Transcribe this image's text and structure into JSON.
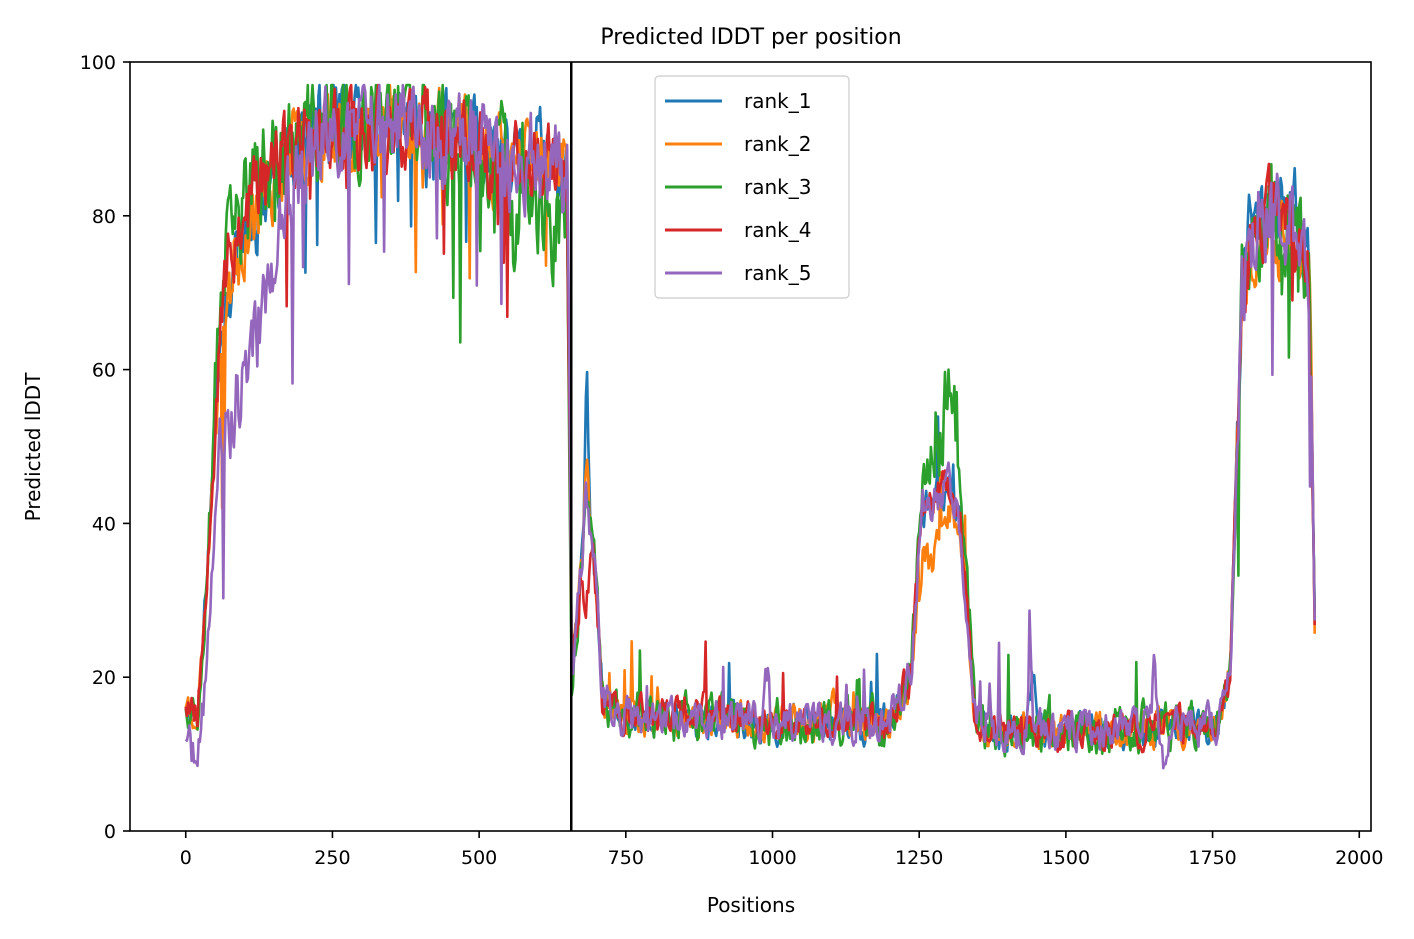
{
  "chart_data": {
    "type": "line",
    "title": "Predicted lDDT per position",
    "xlabel": "Positions",
    "ylabel": "Predicted lDDT",
    "xlim": [
      -95,
      2020
    ],
    "ylim": [
      0,
      100
    ],
    "xticks": [
      0,
      250,
      500,
      750,
      1000,
      1250,
      1500,
      1750,
      2000
    ],
    "yticks": [
      0,
      20,
      40,
      60,
      80,
      100
    ],
    "grid": false,
    "legend_position": "upper-center",
    "vline_x": 657,
    "series": [
      {
        "name": "rank_1",
        "color": "#1f77b4",
        "seed": 11,
        "amp": 1.0,
        "bumps": [
          [
            683,
            12,
            3
          ],
          [
            1445,
            8,
            5
          ],
          [
            1815,
            4,
            5
          ],
          [
            1890,
            3,
            4
          ]
        ]
      },
      {
        "name": "rank_2",
        "color": "#ff7f0e",
        "seed": 23,
        "amp": 1.0,
        "bumps": [
          [
            683,
            9,
            3
          ],
          [
            1270,
            -8,
            20
          ],
          [
            1860,
            -6,
            4
          ],
          [
            1100,
            2,
            10
          ]
        ]
      },
      {
        "name": "rank_3",
        "color": "#2ca02c",
        "seed": 37,
        "amp": 1.3,
        "bumps": [
          [
            620,
            -10,
            20
          ],
          [
            560,
            -8,
            6
          ],
          [
            1295,
            10,
            25
          ],
          [
            1170,
            6,
            3
          ],
          [
            100,
            4,
            40
          ]
        ]
      },
      {
        "name": "rank_4",
        "color": "#d62728",
        "seed": 53,
        "amp": 1.0,
        "bumps": [
          [
            683,
            -12,
            5
          ],
          [
            100,
            3,
            40
          ],
          [
            900,
            1,
            60
          ]
        ]
      },
      {
        "name": "rank_5",
        "color": "#9467bd",
        "seed": 71,
        "amp": 1.1,
        "bumps": [
          [
            95,
            -18,
            55
          ],
          [
            990,
            6,
            4
          ],
          [
            1440,
            10,
            3
          ],
          [
            1650,
            7,
            3
          ],
          [
            1370,
            6,
            3
          ],
          [
            1665,
            -4,
            4
          ]
        ]
      }
    ],
    "profile": [
      [
        0,
        17
      ],
      [
        20,
        15
      ],
      [
        30,
        25
      ],
      [
        45,
        45
      ],
      [
        60,
        68
      ],
      [
        100,
        78
      ],
      [
        150,
        85
      ],
      [
        200,
        90
      ],
      [
        250,
        92
      ],
      [
        300,
        91
      ],
      [
        350,
        92
      ],
      [
        400,
        91
      ],
      [
        450,
        90
      ],
      [
        500,
        89
      ],
      [
        550,
        86
      ],
      [
        600,
        88
      ],
      [
        650,
        85
      ],
      [
        658,
        20
      ],
      [
        670,
        30
      ],
      [
        683,
        43
      ],
      [
        695,
        36
      ],
      [
        710,
        18
      ],
      [
        740,
        15
      ],
      [
        1000,
        14
      ],
      [
        1200,
        14
      ],
      [
        1235,
        20
      ],
      [
        1255,
        42
      ],
      [
        1300,
        45
      ],
      [
        1320,
        40
      ],
      [
        1345,
        15
      ],
      [
        1370,
        13
      ],
      [
        1600,
        13
      ],
      [
        1760,
        14
      ],
      [
        1780,
        20
      ],
      [
        1800,
        70
      ],
      [
        1830,
        80
      ],
      [
        1880,
        80
      ],
      [
        1915,
        72
      ],
      [
        1925,
        22
      ]
    ]
  }
}
